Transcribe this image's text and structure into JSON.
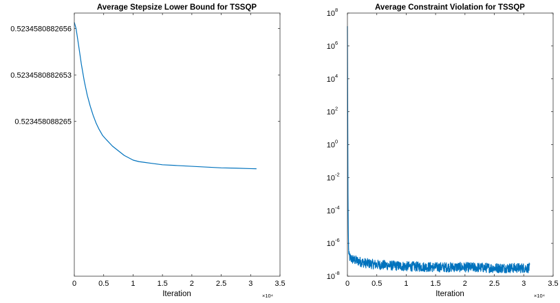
{
  "chart_data": [
    {
      "type": "line",
      "title": "Average Stepsize Lower Bound for TSSQP",
      "xlabel": "Iteration",
      "ylabel": "",
      "x_exponent_label": "×10⁴",
      "xlim": [
        0,
        35000
      ],
      "ylim": [
        0.523458088264,
        0.5234580882657
      ],
      "x_scale_factor": 10000,
      "x_ticks": [
        0,
        5000,
        10000,
        15000,
        20000,
        25000,
        30000,
        35000
      ],
      "x_tick_labels": [
        "0",
        "0.5",
        "1",
        "1.5",
        "2",
        "2.5",
        "3",
        "3.5"
      ],
      "y_ticks": [
        0.523458088265,
        0.5234580882653,
        0.5234580882656
      ],
      "y_tick_labels": [
        "0.523458088265",
        "0.5234580882653",
        "0.5234580882656"
      ],
      "y_scale": "linear",
      "grid": false,
      "color": "#0072BD",
      "series": [
        {
          "x": [
            0,
            300,
            700,
            1200,
            1700,
            2200,
            2700,
            3200,
            3700,
            4200,
            4800,
            5500,
            6500,
            7500,
            8500,
            9500,
            10000,
            11000,
            12000,
            13000,
            14000,
            15000,
            17500,
            20000,
            22500,
            25000,
            27500,
            30000,
            31000
          ],
          "y": [
            0.52345808826564,
            0.5234580882656,
            0.5234580882655,
            0.52345808826537,
            0.52345808826526,
            0.52345808826517,
            0.5234580882651,
            0.52345808826504,
            0.52345808826499,
            0.52345808826495,
            0.52345808826491,
            0.52345808826488,
            0.52345808826484,
            0.52345808826481,
            0.52345808826478,
            0.52345808826476,
            0.52345808826475,
            0.52345808826474,
            0.523458088264735,
            0.52345808826473,
            0.523458088264725,
            0.52345808826472,
            0.523458088264715,
            0.52345808826471,
            0.523458088264705,
            0.5234580882647,
            0.523458088264698,
            0.523458088264695,
            0.523458088264694
          ]
        }
      ]
    },
    {
      "type": "line",
      "title": "Average Constraint Violation for TSSQP",
      "xlabel": "Iteration",
      "ylabel": "",
      "x_exponent_label": "×10⁴",
      "xlim": [
        0,
        35000
      ],
      "ylim_log10": [
        -8,
        8
      ],
      "x_scale_factor": 10000,
      "x_ticks": [
        0,
        5000,
        10000,
        15000,
        20000,
        25000,
        30000,
        35000
      ],
      "x_tick_labels": [
        "0",
        "0.5",
        "1",
        "1.5",
        "2",
        "2.5",
        "3",
        "3.5"
      ],
      "y_tick_exponents": [
        -8,
        -6,
        -4,
        -2,
        0,
        2,
        4,
        6,
        8
      ],
      "y_scale": "log",
      "grid": false,
      "color": "#0072BD",
      "series": [
        {
          "x": [
            0,
            50,
            100,
            150,
            200,
            300,
            500,
            1000,
            2000,
            3000,
            5000,
            7500,
            10000,
            15000,
            20000,
            25000,
            30000,
            31000
          ],
          "y_log10": [
            7.2,
            2.0,
            -3.0,
            -5.2,
            -6.4,
            -6.8,
            -6.9,
            -7.0,
            -7.1,
            -7.2,
            -7.3,
            -7.35,
            -7.4,
            -7.45,
            -7.45,
            -7.5,
            -7.5,
            -7.5
          ],
          "noise_log10_amplitude": 0.3
        }
      ]
    }
  ]
}
